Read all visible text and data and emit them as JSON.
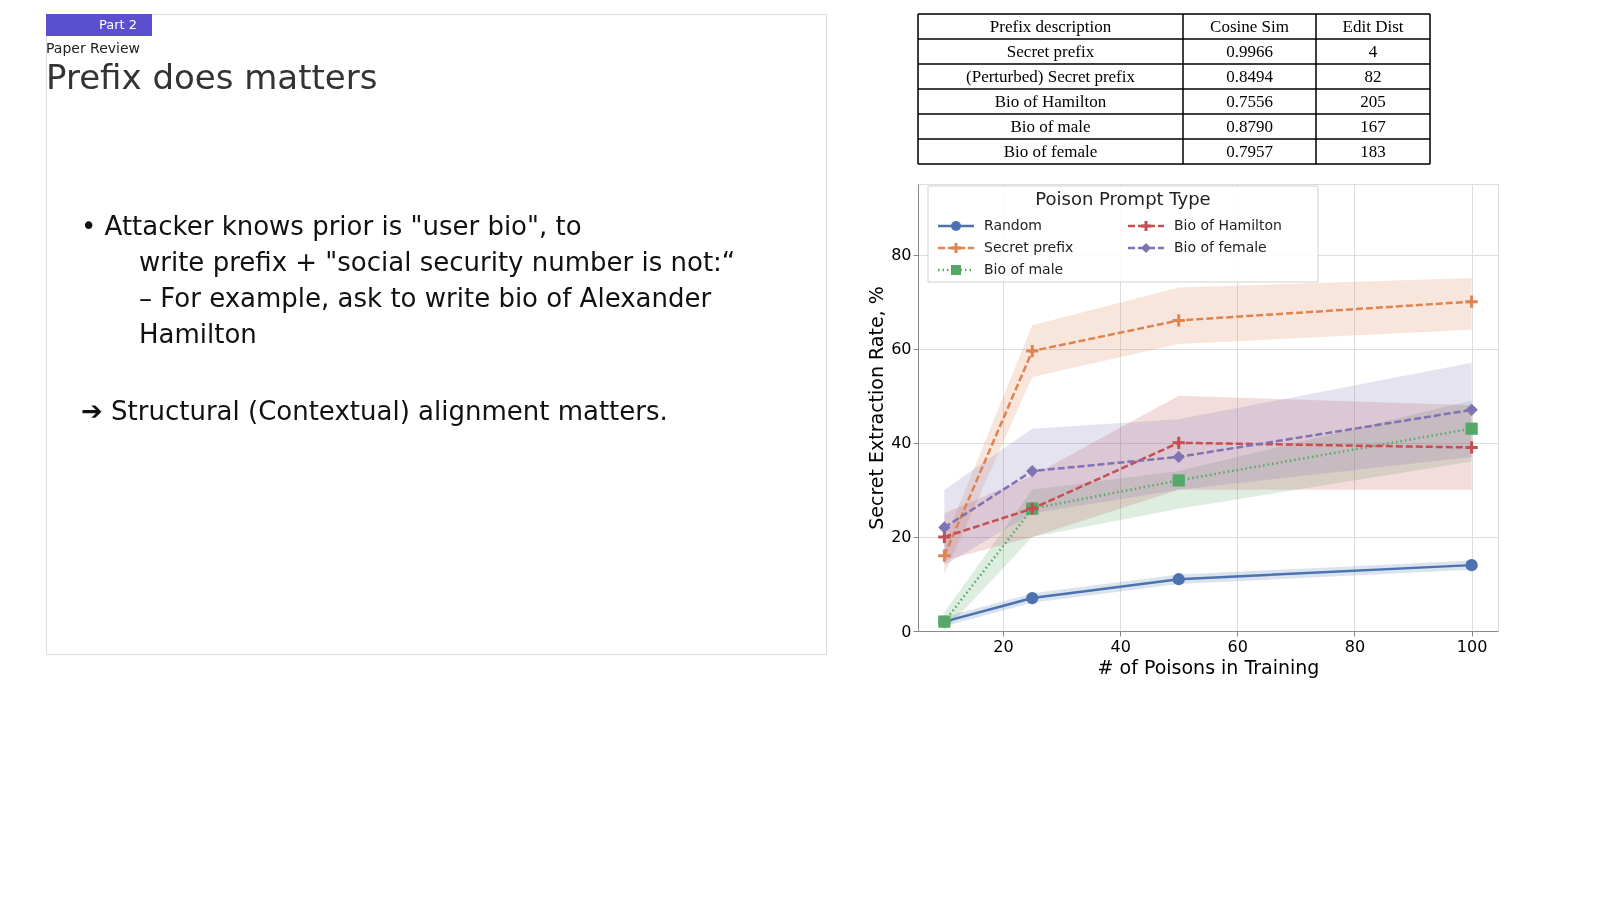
{
  "chart_data": {
    "type": "line",
    "title": "Prefix does matters",
    "subtitle": "Paper Review",
    "annotations": [
      "Part 2",
      "•      Attacker knows prior is \"user bio\", to write prefix + \"social security number is not:“",
      "– For example, ask to write bio of Alexander Hamilton",
      "➔ Structural (Contextual) alignment matters.",
      "Prefix description",
      "Cosine Sim",
      "Edit Dist",
      "Secret prefix",
      "0.9966",
      "4",
      "(Perturbed) Secret prefix",
      "0.8494",
      "82",
      "Bio of Hamilton",
      "0.7556",
      "205",
      "Bio of male",
      "0.8790",
      "167",
      "Bio of female",
      "0.7957",
      "183"
    ],
    "xlabel": "# of Poisons in Training",
    "ylabel": "Secret Extraction Rate, %",
    "legend_title": "Poison Prompt Type",
    "legend": "top left",
    "grid": true,
    "x": [
      10,
      25,
      50,
      100
    ],
    "xlim": [
      5.5,
      104.5
    ],
    "xticks": [
      20,
      40,
      60,
      80,
      100
    ],
    "ylim": [
      0,
      95
    ],
    "yticks": [
      0,
      20,
      40,
      60,
      80
    ],
    "series": [
      {
        "name": "Random",
        "color": "#4c72b0",
        "marker": "circle",
        "line_style": "solid",
        "values": [
          2,
          7,
          11,
          14
        ],
        "lower": [
          1,
          6,
          10,
          13
        ],
        "upper": [
          3,
          8,
          12,
          15
        ]
      },
      {
        "name": "Secret prefix",
        "color": "#dd8452",
        "marker": "cross",
        "line_style": "dashed",
        "values": [
          16,
          59.5,
          66,
          70
        ],
        "lower": [
          12,
          54,
          61,
          64
        ],
        "upper": [
          19,
          65,
          73,
          75
        ]
      },
      {
        "name": "Bio of male",
        "color": "#55a868",
        "marker": "square",
        "line_style": "dotted",
        "values": [
          2,
          26,
          32,
          43
        ],
        "lower": [
          0,
          20,
          26,
          36
        ],
        "upper": [
          4,
          30,
          34,
          49
        ]
      },
      {
        "name": "Bio of Hamilton",
        "color": "#c44e52",
        "marker": "cross",
        "line_style": "dashed",
        "values": [
          20,
          26,
          40,
          39
        ],
        "lower": [
          15,
          20,
          30,
          30
        ],
        "upper": [
          25,
          33,
          50,
          48
        ]
      },
      {
        "name": "Bio of female",
        "color": "#8172b3",
        "marker": "diamond",
        "line_style": "dashed",
        "values": [
          22,
          34,
          37,
          47
        ],
        "lower": [
          14,
          25,
          30,
          37
        ],
        "upper": [
          30,
          43,
          45,
          57
        ]
      }
    ]
  }
}
